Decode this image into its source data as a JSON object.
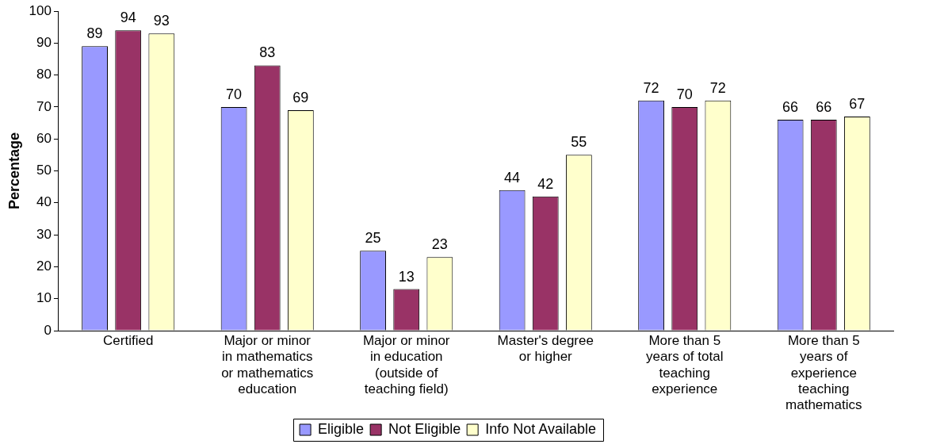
{
  "chart_data": {
    "type": "bar",
    "ylabel": "Percentage",
    "categories": [
      "Certified",
      "Major or minor in mathematics or mathematics education",
      "Major or minor in education (outside of teaching field)",
      "Master's degree or higher",
      "More than 5 years of total teaching experience",
      "More than 5 years of experience teaching mathematics"
    ],
    "series": [
      {
        "name": "Eligible",
        "color": "#9999ff",
        "values": [
          89,
          70,
          25,
          44,
          72,
          66
        ]
      },
      {
        "name": "Not Eligible",
        "color": "#993366",
        "values": [
          94,
          83,
          13,
          42,
          70,
          66
        ]
      },
      {
        "name": "Info Not Available",
        "color": "#ffffcc",
        "values": [
          93,
          69,
          23,
          55,
          72,
          67
        ]
      }
    ],
    "ylim": [
      0,
      100
    ],
    "yticks": [
      0,
      10,
      20,
      30,
      40,
      50,
      60,
      70,
      80,
      90,
      100
    ],
    "grid": false,
    "legend": "bottom",
    "data_labels": true
  }
}
